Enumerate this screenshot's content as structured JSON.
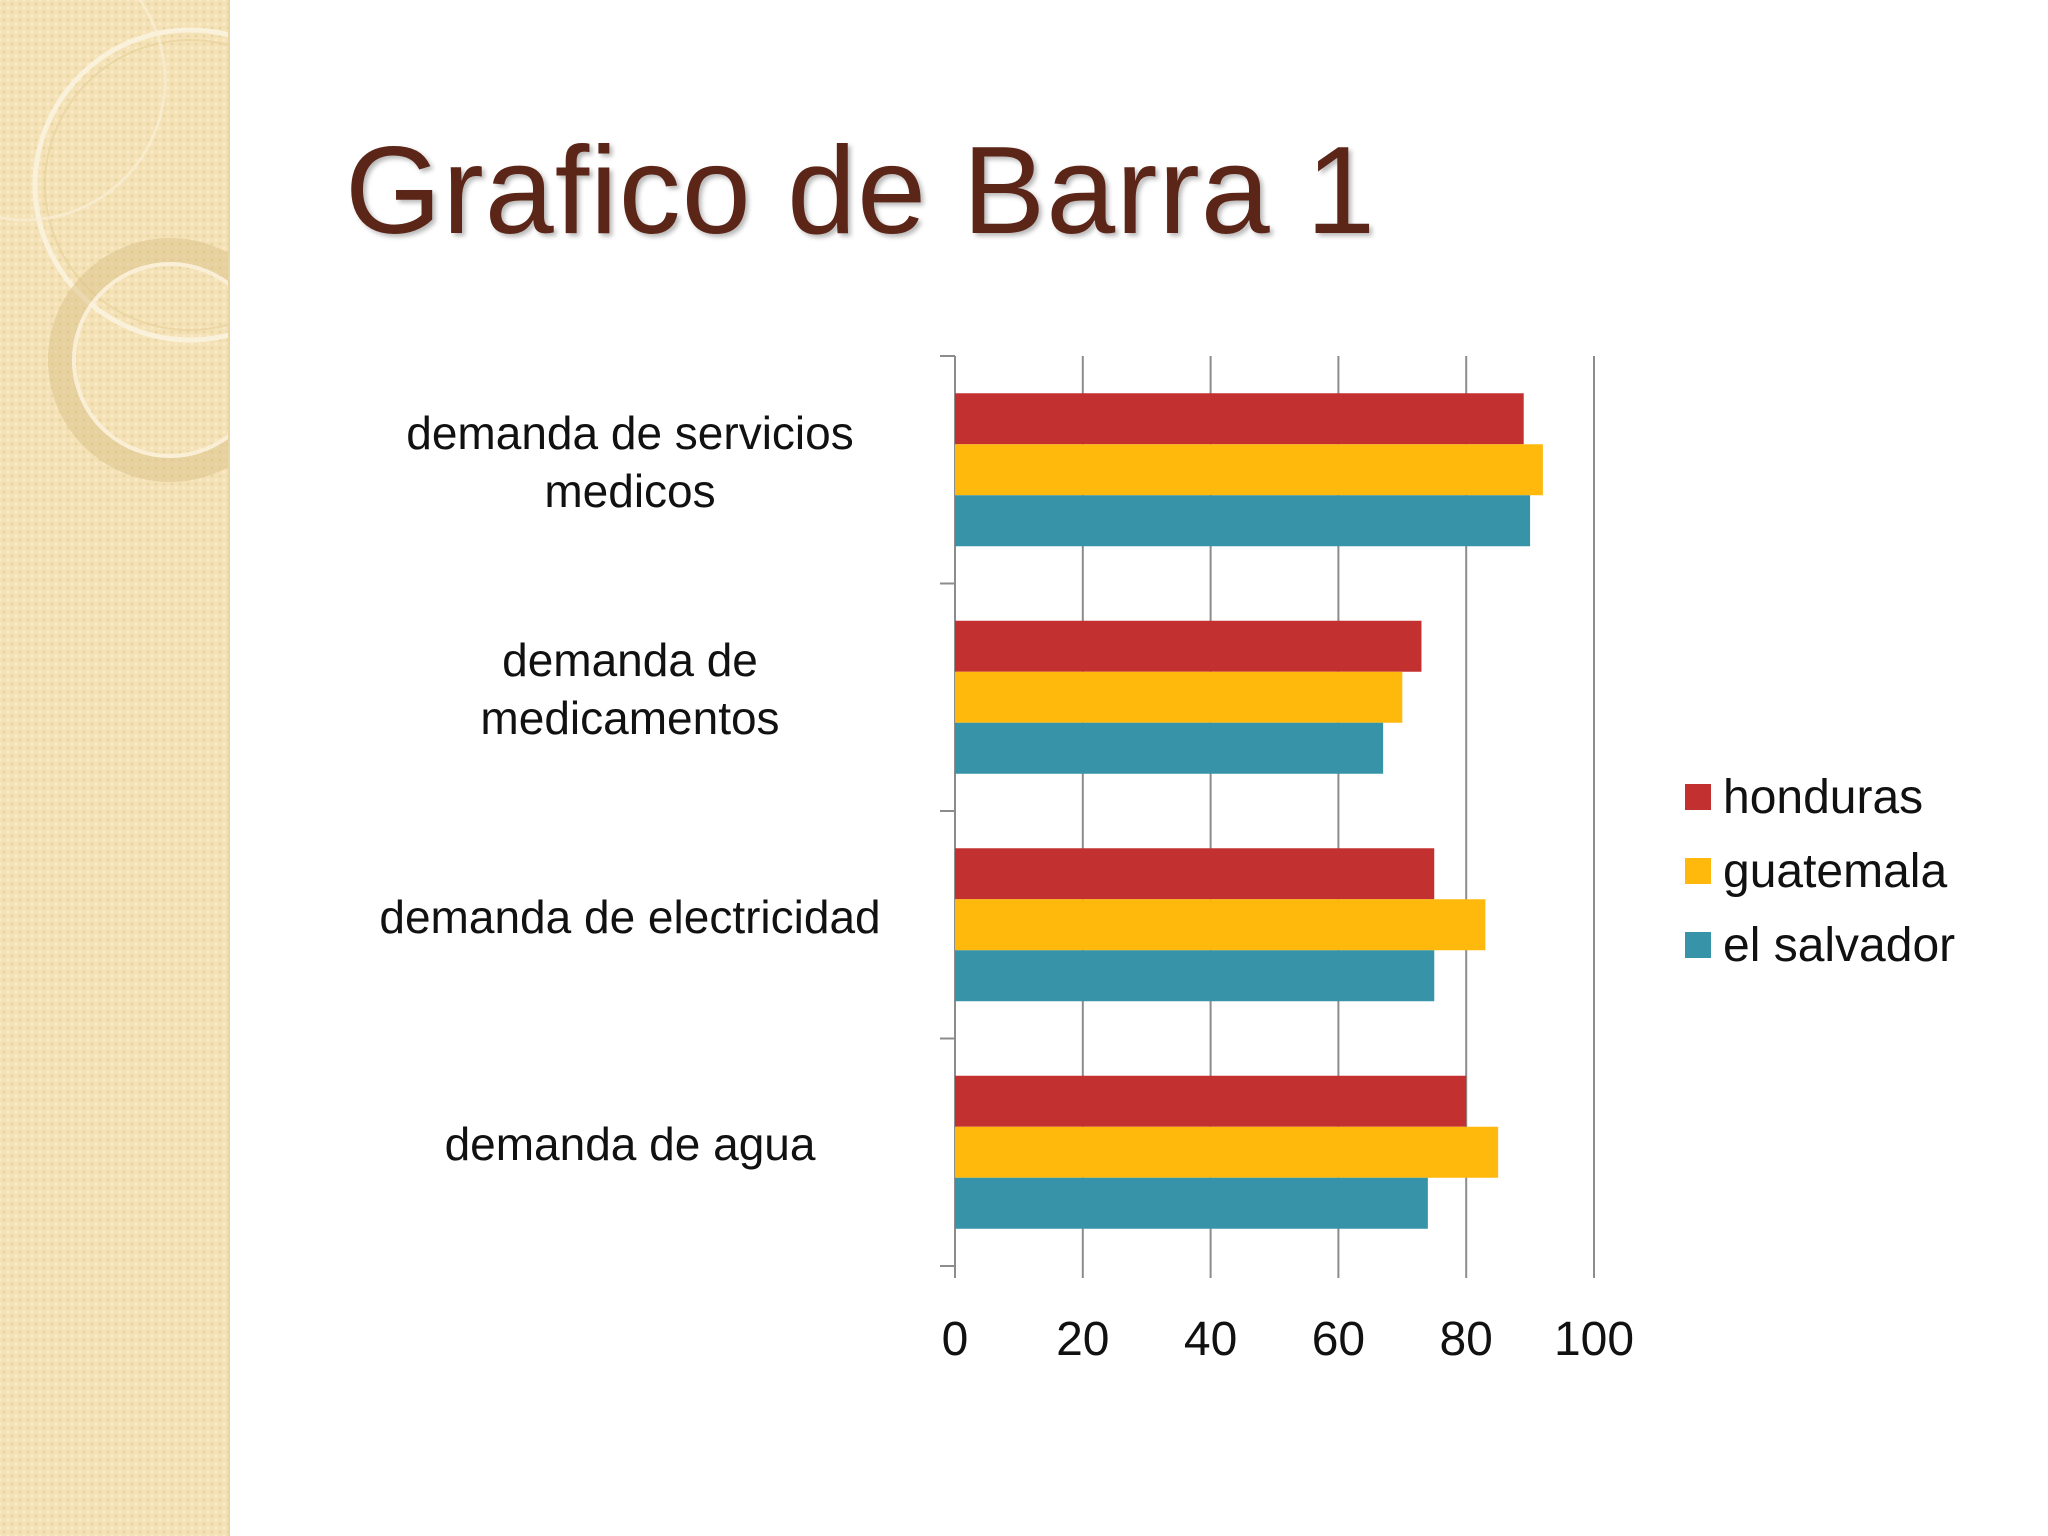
{
  "slide": {
    "title": "Grafico de Barra 1"
  },
  "chart_data": {
    "type": "bar",
    "orientation": "horizontal",
    "categories": [
      "demanda de servicios medicos",
      "demanda de medicamentos",
      "demanda de electricidad",
      "demanda de agua"
    ],
    "category_label_lines": [
      [
        "demanda de servicios",
        "medicos"
      ],
      [
        "demanda de",
        "medicamentos"
      ],
      [
        "demanda de electricidad"
      ],
      [
        "demanda de agua"
      ]
    ],
    "series": [
      {
        "name": "honduras",
        "color": "#c33030",
        "values": [
          89,
          73,
          75,
          80
        ]
      },
      {
        "name": "guatemala",
        "color": "#ffb90c",
        "values": [
          92,
          70,
          83,
          85
        ]
      },
      {
        "name": "el salvador",
        "color": "#3794a8",
        "values": [
          90,
          67,
          75,
          74
        ]
      }
    ],
    "xlim": [
      0,
      100
    ],
    "xticks": [
      0,
      20,
      40,
      60,
      80,
      100
    ],
    "title": "",
    "xlabel": "",
    "ylabel": "",
    "grid": true,
    "legend_position": "right"
  }
}
